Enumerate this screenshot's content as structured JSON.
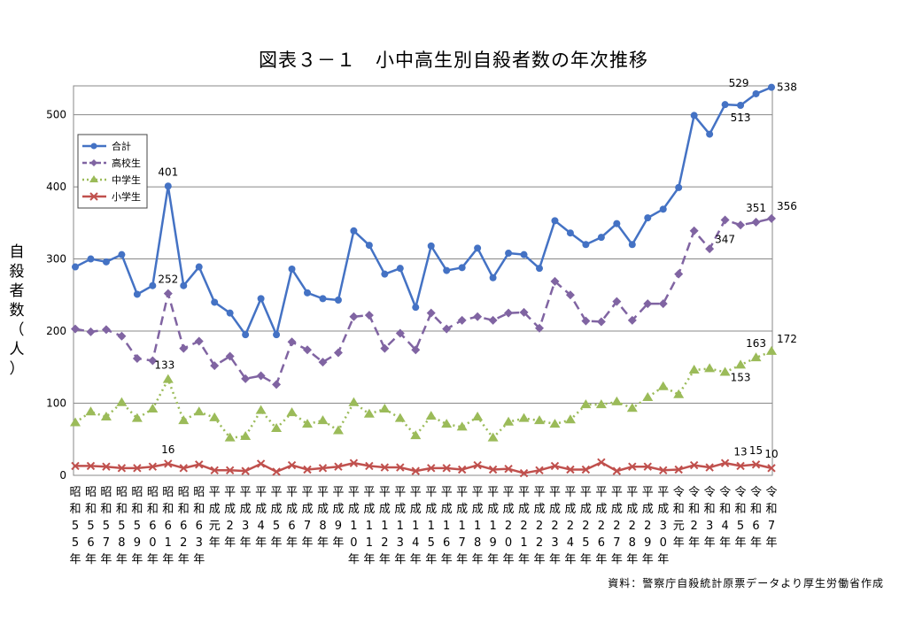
{
  "chart_data": {
    "type": "line",
    "title": "図表３－１　小中高生別自殺者数の年次推移",
    "ylabel": "自殺者数（人）",
    "xlabel": "",
    "ylim": [
      0,
      540
    ],
    "y_ticks": [
      0,
      100,
      200,
      300,
      400,
      500
    ],
    "grid": true,
    "legend_position": "upper-left",
    "categories": [
      "昭和55年",
      "昭和56年",
      "昭和57年",
      "昭和58年",
      "昭和59年",
      "昭和60年",
      "昭和61年",
      "昭和62年",
      "昭和63年",
      "平成元年",
      "平成2年",
      "平成3年",
      "平成4年",
      "平成5年",
      "平成6年",
      "平成7年",
      "平成8年",
      "平成9年",
      "平成10年",
      "平成11年",
      "平成12年",
      "平成13年",
      "平成14年",
      "平成15年",
      "平成16年",
      "平成17年",
      "平成18年",
      "平成19年",
      "平成20年",
      "平成21年",
      "平成22年",
      "平成23年",
      "平成24年",
      "平成25年",
      "平成26年",
      "平成27年",
      "平成28年",
      "平成29年",
      "平成30年",
      "令和元年",
      "令和2年",
      "令和3年",
      "令和4年",
      "令和5年",
      "令和6年",
      "令和7年"
    ],
    "series": [
      {
        "name": "合計",
        "color": "#4472c4",
        "marker": "circle",
        "dash": "solid",
        "values": [
          289,
          300,
          296,
          306,
          251,
          263,
          401,
          263,
          289,
          240,
          225,
          195,
          245,
          195,
          286,
          253,
          245,
          243,
          339,
          319,
          279,
          287,
          233,
          318,
          284,
          288,
          315,
          274,
          308,
          306,
          287,
          353,
          336,
          320,
          330,
          349,
          320,
          357,
          369,
          399,
          499,
          473,
          514,
          513,
          529,
          538
        ]
      },
      {
        "name": "高校生",
        "color": "#8064a2",
        "marker": "diamond",
        "dash": "dashed",
        "values": [
          203,
          199,
          202,
          193,
          162,
          159,
          252,
          176,
          186,
          152,
          165,
          134,
          138,
          126,
          185,
          174,
          157,
          170,
          220,
          222,
          176,
          197,
          174,
          225,
          203,
          215,
          220,
          215,
          225,
          226,
          204,
          269,
          250,
          214,
          213,
          241,
          215,
          238,
          238,
          279,
          339,
          314,
          354,
          347,
          351,
          356
        ]
      },
      {
        "name": "中学生",
        "color": "#9bbb59",
        "marker": "triangle",
        "dash": "dotted",
        "values": [
          73,
          88,
          81,
          101,
          79,
          92,
          133,
          76,
          88,
          80,
          52,
          54,
          90,
          65,
          87,
          71,
          76,
          62,
          101,
          85,
          92,
          79,
          55,
          82,
          71,
          67,
          81,
          52,
          74,
          79,
          76,
          71,
          77,
          98,
          98,
          102,
          93,
          108,
          123,
          112,
          146,
          148,
          143,
          153,
          163,
          172
        ]
      },
      {
        "name": "小学生",
        "color": "#c0504d",
        "marker": "x",
        "dash": "solid",
        "values": [
          13,
          13,
          12,
          10,
          10,
          12,
          16,
          10,
          15,
          7,
          7,
          6,
          16,
          5,
          14,
          8,
          10,
          12,
          17,
          13,
          11,
          11,
          6,
          10,
          10,
          8,
          14,
          8,
          9,
          3,
          7,
          13,
          8,
          8,
          18,
          6,
          12,
          12,
          7,
          8,
          14,
          11,
          17,
          13,
          15,
          10
        ]
      }
    ],
    "data_labels": [
      {
        "series": 0,
        "index": 6,
        "text": "401",
        "pos": "above"
      },
      {
        "series": 0,
        "index": 43,
        "text": "513",
        "pos": "below"
      },
      {
        "series": 0,
        "index": 44,
        "text": "529",
        "pos": "left-above"
      },
      {
        "series": 0,
        "index": 45,
        "text": "538",
        "pos": "right"
      },
      {
        "series": 1,
        "index": 6,
        "text": "252",
        "pos": "above"
      },
      {
        "series": 1,
        "index": 43,
        "text": "347",
        "pos": "below-left"
      },
      {
        "series": 1,
        "index": 44,
        "text": "351",
        "pos": "above"
      },
      {
        "series": 1,
        "index": 45,
        "text": "356",
        "pos": "right-above"
      },
      {
        "series": 2,
        "index": 6,
        "text": "133",
        "pos": "above-left"
      },
      {
        "series": 2,
        "index": 43,
        "text": "153",
        "pos": "below"
      },
      {
        "series": 2,
        "index": 44,
        "text": "163",
        "pos": "above"
      },
      {
        "series": 2,
        "index": 45,
        "text": "172",
        "pos": "right-above"
      },
      {
        "series": 3,
        "index": 6,
        "text": "16",
        "pos": "above"
      },
      {
        "series": 3,
        "index": 43,
        "text": "13",
        "pos": "above"
      },
      {
        "series": 3,
        "index": 44,
        "text": "15",
        "pos": "above"
      },
      {
        "series": 3,
        "index": 45,
        "text": "10",
        "pos": "above"
      }
    ]
  },
  "source_note": "資料：警察庁自殺統計原票データより厚生労働省作成"
}
